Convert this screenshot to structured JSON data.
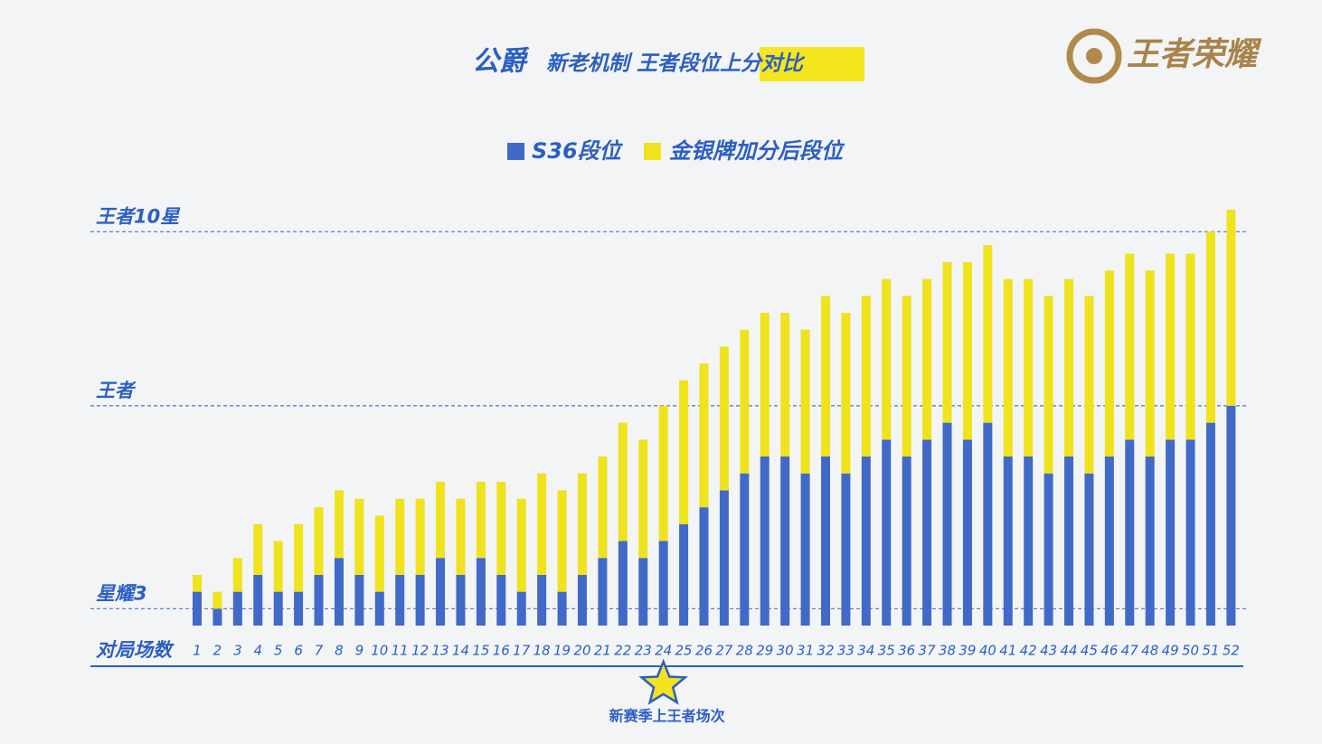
{
  "chart_data": {
    "type": "stacked_bar",
    "title_name": "公爵",
    "title": "新老机制 王者段位上分对比",
    "logo": "王者荣耀",
    "x_label": "对局场数",
    "annotation": "新赛季上王者场次",
    "categories": [
      "1",
      "2",
      "3",
      "4",
      "5",
      "6",
      "7",
      "8",
      "9",
      "10",
      "11",
      "12",
      "13",
      "14",
      "15",
      "16",
      "17",
      "18",
      "19",
      "20",
      "21",
      "22",
      "23",
      "24",
      "25",
      "26",
      "27",
      "28",
      "29",
      "30",
      "31",
      "32",
      "33",
      "34",
      "35",
      "36",
      "37",
      "38",
      "39",
      "40",
      "41",
      "42",
      "43",
      "44",
      "45",
      "46",
      "47",
      "48",
      "49",
      "50",
      "51",
      "52"
    ],
    "series": [
      {
        "name": "S36段位",
        "color": "#4169c8",
        "values": [
          2,
          1,
          2,
          3,
          2,
          2,
          3,
          4,
          3,
          2,
          3,
          3,
          4,
          3,
          4,
          3,
          2,
          3,
          2,
          3,
          4,
          5,
          4,
          5,
          6,
          7,
          8,
          9,
          10,
          10,
          9,
          10,
          9,
          10,
          11,
          10,
          11,
          12,
          11,
          12,
          10,
          10,
          9,
          10,
          9,
          10,
          11,
          10,
          11,
          11,
          12,
          13
        ]
      },
      {
        "name": "金银牌加分后段位",
        "color": "#f0e21c",
        "values": [
          1,
          1,
          2,
          3,
          3,
          4,
          4,
          4,
          4.5,
          4.5,
          4.5,
          4.5,
          4.5,
          4.5,
          4.5,
          5.5,
          5.5,
          6,
          6,
          6,
          6,
          7,
          7,
          8,
          8.5,
          8.5,
          8.5,
          8.5,
          8.5,
          8.5,
          8.5,
          9.5,
          9.5,
          9.5,
          9.5,
          9.5,
          9.5,
          9.5,
          10.5,
          10.5,
          10.5,
          10.5,
          10.5,
          10.5,
          10.5,
          11,
          11,
          11,
          11,
          11,
          11.3,
          11.6
        ]
      }
    ],
    "ylim": [
      0,
      25
    ],
    "yticks": [
      {
        "value": 1,
        "label": "星耀3"
      },
      {
        "value": 13,
        "label": "王者"
      },
      {
        "value": 23.3,
        "label": "王者10星"
      }
    ],
    "grid": true
  }
}
